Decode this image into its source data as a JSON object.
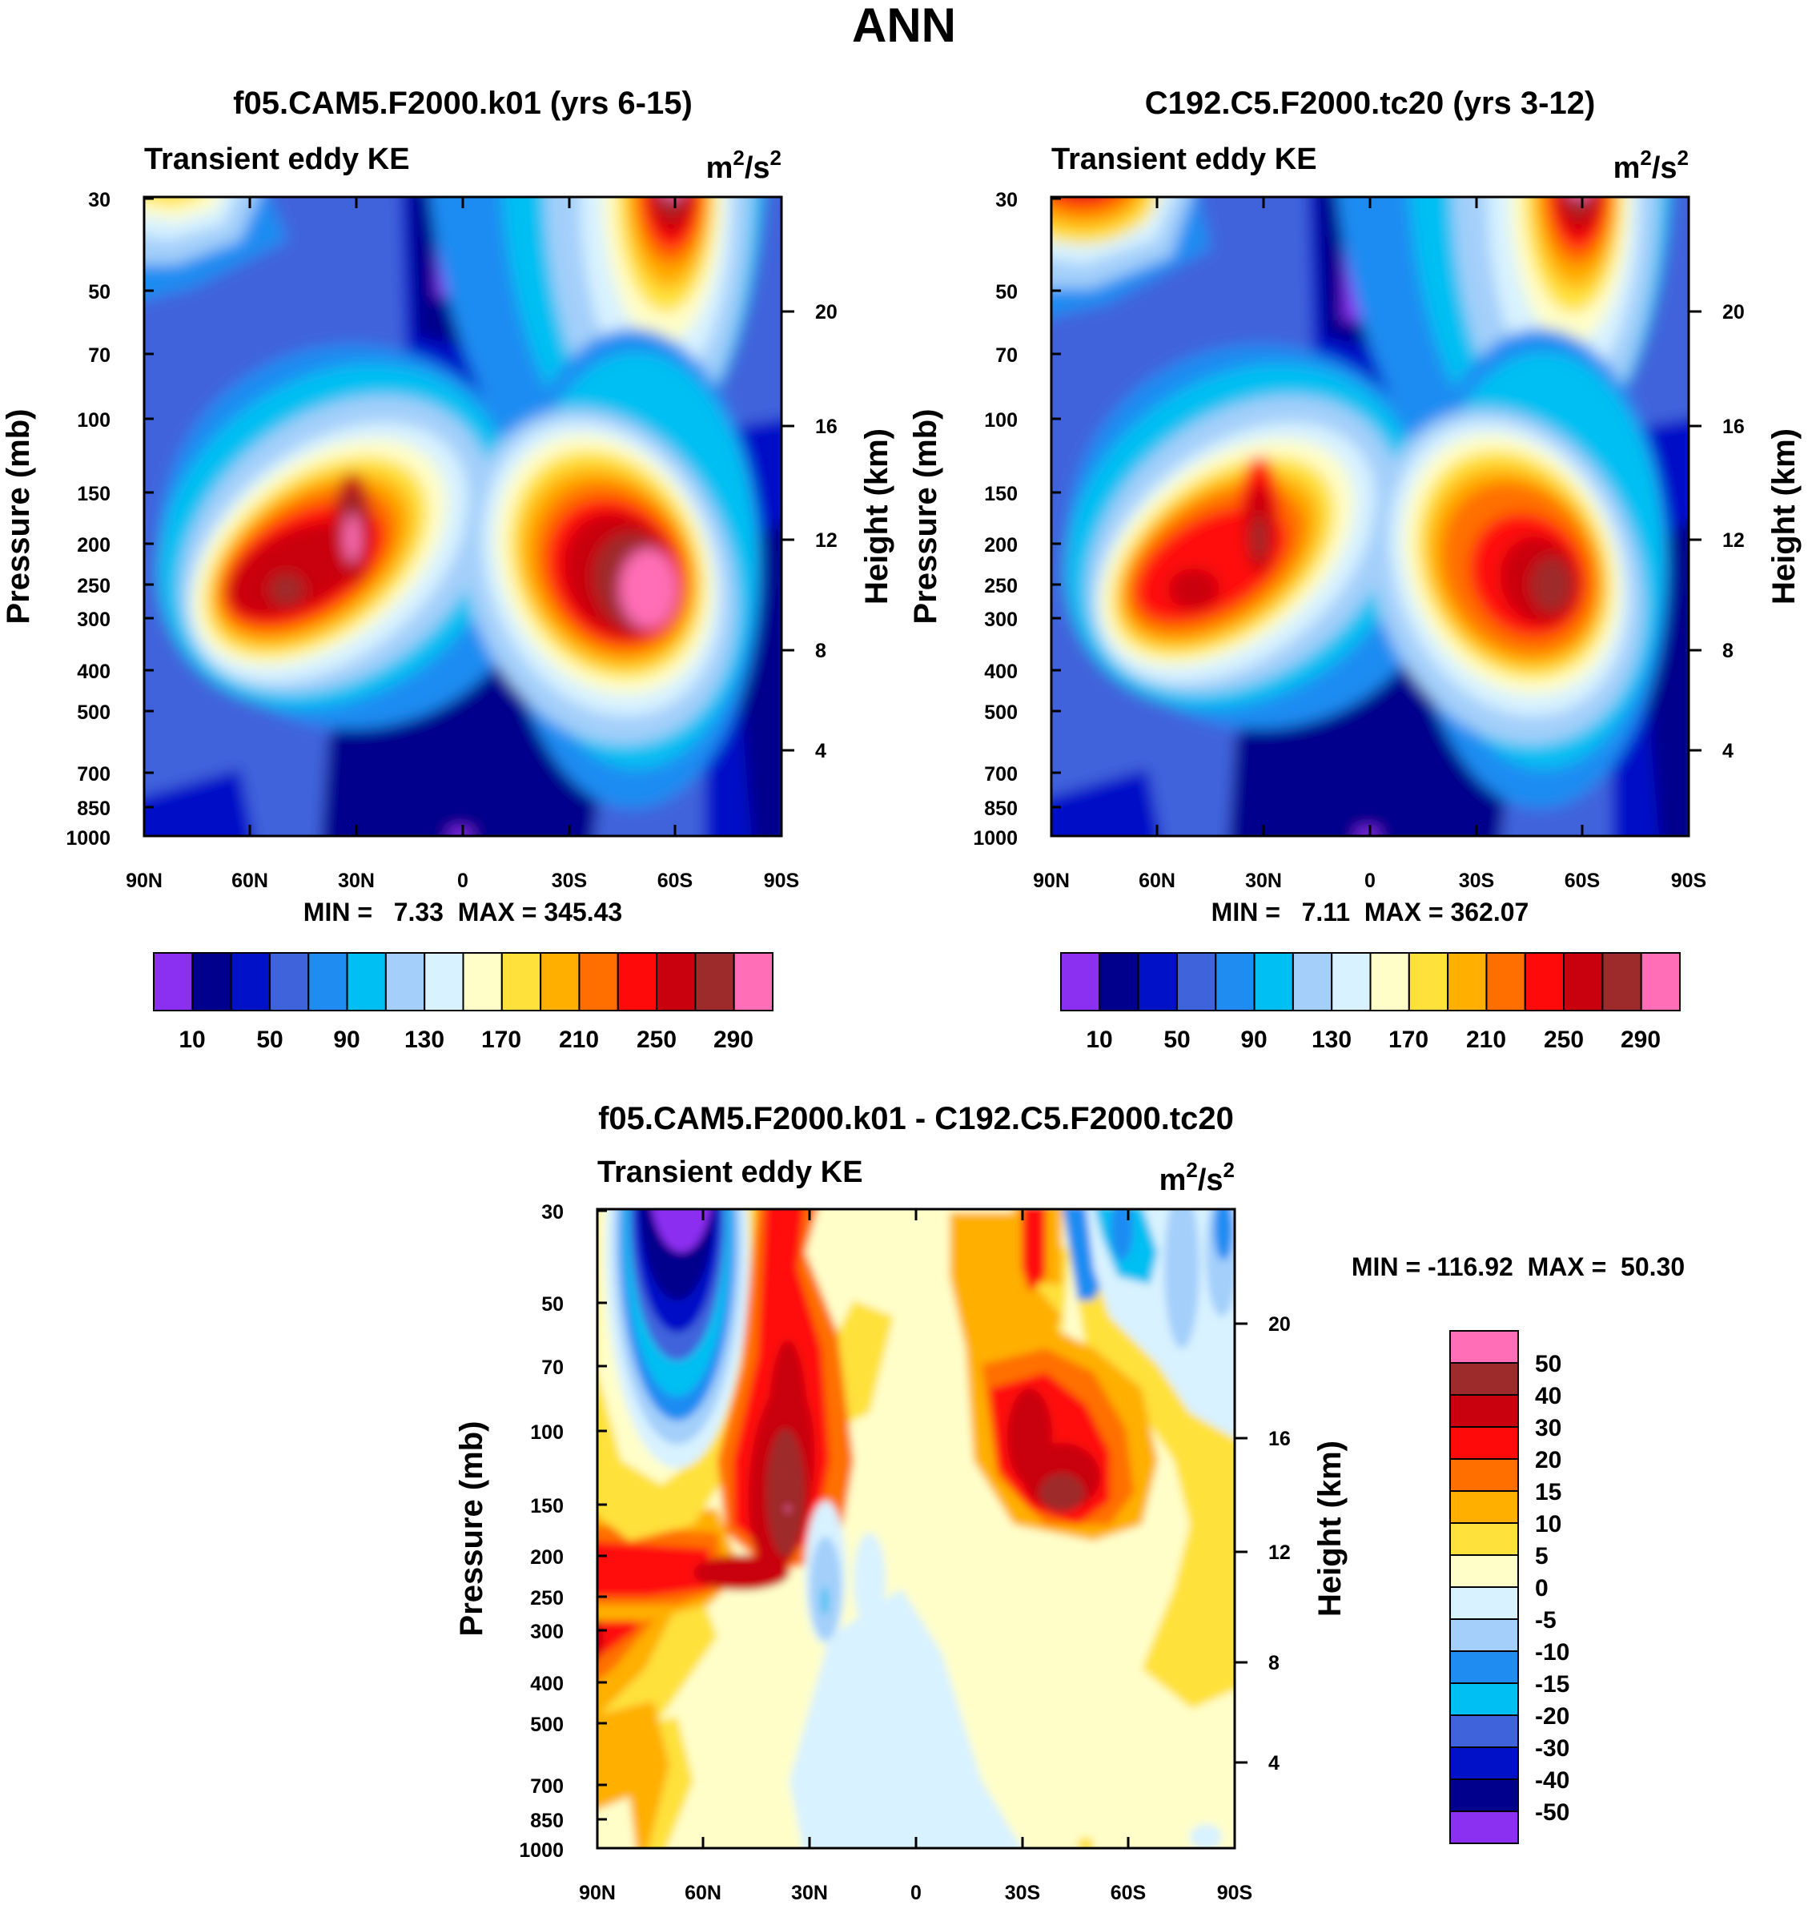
{
  "figure_title": "ANN",
  "colors": {
    "bar_main": [
      "#8b2ff0",
      "#00008c",
      "#0011c7",
      "#3f63db",
      "#1f8cf2",
      "#00bff2",
      "#a3cffa",
      "#d8f2ff",
      "#fffec9",
      "#ffe13b",
      "#ffaf00",
      "#ff6f00",
      "#ff0a0a",
      "#c9000e",
      "#9e2b2b",
      "#ff6eb6"
    ],
    "bar_diff": [
      "#ff6eb6",
      "#9e2b2b",
      "#c9000e",
      "#ff0a0a",
      "#ff6f00",
      "#ffaf00",
      "#ffe13b",
      "#fffec9",
      "#d8f2ff",
      "#a3cffa",
      "#1f8cf2",
      "#00bff2",
      "#3f63db",
      "#0011c7",
      "#00008c",
      "#8b2ff0"
    ]
  },
  "chart_data": [
    {
      "type": "contour",
      "title": "f05.CAM5.F2000.k01 (yrs 6-15)",
      "left_label": "Transient eddy KE",
      "unit_base": "m",
      "unit_exp": "2",
      "unit_sep": "/s",
      "ylabel": "Pressure (mb)",
      "y2label": "Height (km)",
      "x_ticks": [
        "90N",
        "60N",
        "30N",
        "0",
        "30S",
        "60S",
        "90S"
      ],
      "y_ticks": [
        "30",
        "50",
        "70",
        "100",
        "150",
        "200",
        "250",
        "300",
        "400",
        "500",
        "700",
        "850",
        "1000"
      ],
      "y2_ticks": [
        "20",
        "16",
        "12",
        "8",
        "4"
      ],
      "stats": "MIN =   7.33  MAX = 345.43",
      "levels": [
        10,
        30,
        50,
        70,
        90,
        110,
        130,
        150,
        170,
        190,
        210,
        230,
        250,
        270,
        290
      ],
      "colorbar_labels": [
        "10",
        "50",
        "90",
        "130",
        "170",
        "210",
        "250",
        "290"
      ]
    },
    {
      "type": "contour",
      "title": "C192.C5.F2000.tc20 (yrs 3-12)",
      "left_label": "Transient eddy KE",
      "unit_base": "m",
      "unit_exp": "2",
      "unit_sep": "/s",
      "ylabel": "Pressure (mb)",
      "y2label": "Height (km)",
      "x_ticks": [
        "90N",
        "60N",
        "30N",
        "0",
        "30S",
        "60S",
        "90S"
      ],
      "y_ticks": [
        "30",
        "50",
        "70",
        "100",
        "150",
        "200",
        "250",
        "300",
        "400",
        "500",
        "700",
        "850",
        "1000"
      ],
      "y2_ticks": [
        "20",
        "16",
        "12",
        "8",
        "4"
      ],
      "stats": "MIN =   7.11  MAX = 362.07",
      "levels": [
        10,
        30,
        50,
        70,
        90,
        110,
        130,
        150,
        170,
        190,
        210,
        230,
        250,
        270,
        290
      ],
      "colorbar_labels": [
        "10",
        "50",
        "90",
        "130",
        "170",
        "210",
        "250",
        "290"
      ]
    },
    {
      "type": "contour",
      "title": "f05.CAM5.F2000.k01 - C192.C5.F2000.tc20",
      "left_label": "Transient eddy KE",
      "unit_base": "m",
      "unit_exp": "2",
      "unit_sep": "/s",
      "ylabel": "Pressure (mb)",
      "y2label": "Height (km)",
      "x_ticks": [
        "90N",
        "60N",
        "30N",
        "0",
        "30S",
        "60S",
        "90S"
      ],
      "y_ticks": [
        "30",
        "50",
        "70",
        "100",
        "150",
        "200",
        "250",
        "300",
        "400",
        "500",
        "700",
        "850",
        "1000"
      ],
      "y2_ticks": [
        "20",
        "16",
        "12",
        "8",
        "4"
      ],
      "stats": "MIN = -116.92  MAX =  50.30",
      "levels": [
        -50,
        -40,
        -30,
        -20,
        -15,
        -10,
        -5,
        0,
        5,
        10,
        15,
        20,
        30,
        40,
        50
      ],
      "colorbar_labels": [
        "50",
        "40",
        "30",
        "20",
        "15",
        "10",
        "5",
        "0",
        "-5",
        "-10",
        "-15",
        "-20",
        "-30",
        "-40",
        "-50"
      ]
    }
  ]
}
